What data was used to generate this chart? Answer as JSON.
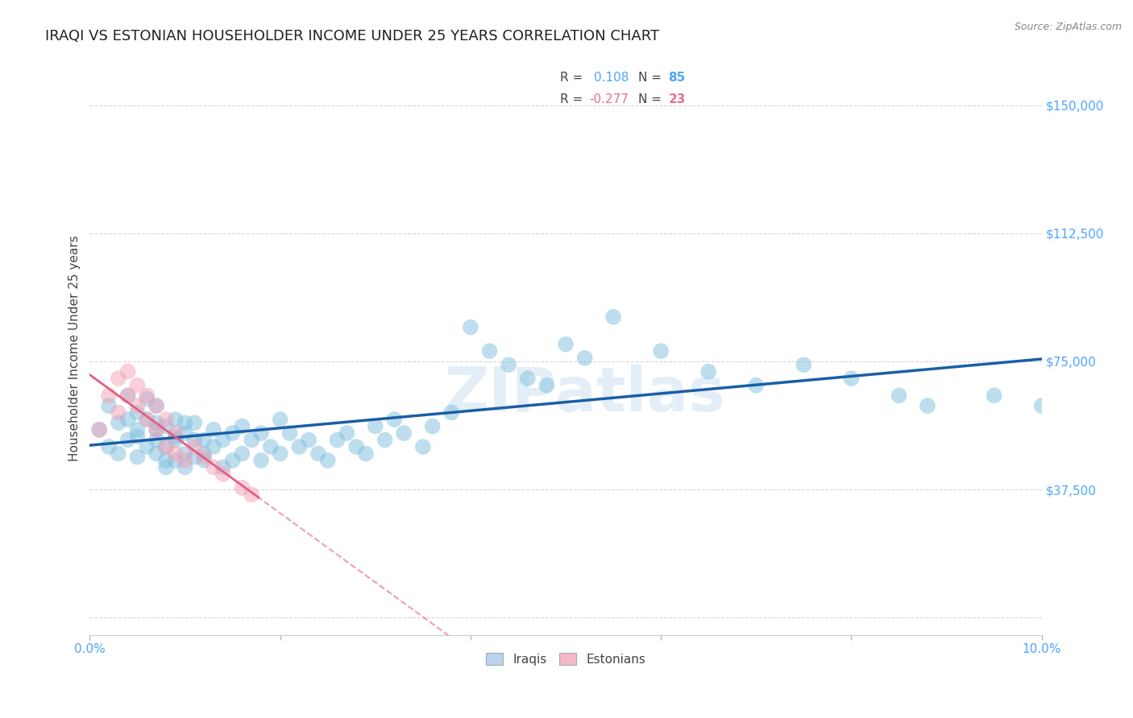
{
  "title": "IRAQI VS ESTONIAN HOUSEHOLDER INCOME UNDER 25 YEARS CORRELATION CHART",
  "source": "Source: ZipAtlas.com",
  "ylabel": "Householder Income Under 25 years",
  "xmin": 0.0,
  "xmax": 0.1,
  "ymin": -5000,
  "ymax": 162500,
  "ytick_vals": [
    0,
    37500,
    75000,
    112500,
    150000
  ],
  "ytick_labels": [
    "",
    "$37,500",
    "$75,000",
    "$112,500",
    "$150,000"
  ],
  "xticks": [
    0.0,
    0.02,
    0.04,
    0.06,
    0.08,
    0.1
  ],
  "xtick_labels": [
    "0.0%",
    "",
    "",
    "",
    "",
    "10.0%"
  ],
  "iraqi_color": "#7fbfdf",
  "estonian_color": "#f4a0b5",
  "iraqi_line_color": "#1a5ea8",
  "estonian_line_color": "#e06080",
  "background_color": "#ffffff",
  "grid_color": "#cccccc",
  "title_fontsize": 13,
  "axis_label_fontsize": 11,
  "tick_fontsize": 11,
  "legend_box_color_iraqi": "#b8d4ee",
  "legend_box_color_estonian": "#f5b8c8",
  "zipatlas_text": "ZIPatlas",
  "iraqi_x": [
    0.001,
    0.002,
    0.002,
    0.003,
    0.003,
    0.004,
    0.004,
    0.004,
    0.005,
    0.005,
    0.005,
    0.005,
    0.006,
    0.006,
    0.006,
    0.007,
    0.007,
    0.007,
    0.007,
    0.007,
    0.008,
    0.008,
    0.008,
    0.008,
    0.009,
    0.009,
    0.009,
    0.009,
    0.01,
    0.01,
    0.01,
    0.01,
    0.011,
    0.011,
    0.011,
    0.012,
    0.012,
    0.012,
    0.013,
    0.013,
    0.014,
    0.014,
    0.015,
    0.015,
    0.016,
    0.016,
    0.017,
    0.018,
    0.018,
    0.019,
    0.02,
    0.02,
    0.021,
    0.022,
    0.023,
    0.024,
    0.025,
    0.026,
    0.027,
    0.028,
    0.029,
    0.03,
    0.031,
    0.032,
    0.033,
    0.035,
    0.036,
    0.038,
    0.04,
    0.042,
    0.044,
    0.046,
    0.048,
    0.05,
    0.052,
    0.055,
    0.06,
    0.065,
    0.07,
    0.075,
    0.08,
    0.085,
    0.088,
    0.095,
    0.1
  ],
  "iraqi_y": [
    55000,
    62000,
    50000,
    57000,
    48000,
    65000,
    58000,
    52000,
    55000,
    60000,
    47000,
    53000,
    58000,
    50000,
    64000,
    52000,
    57000,
    48000,
    55000,
    62000,
    46000,
    50000,
    56000,
    44000,
    52000,
    58000,
    46000,
    53000,
    48000,
    57000,
    44000,
    54000,
    47000,
    52000,
    57000,
    46000,
    52000,
    48000,
    50000,
    55000,
    44000,
    52000,
    46000,
    54000,
    48000,
    56000,
    52000,
    46000,
    54000,
    50000,
    48000,
    58000,
    54000,
    50000,
    52000,
    48000,
    46000,
    52000,
    54000,
    50000,
    48000,
    56000,
    52000,
    58000,
    54000,
    50000,
    56000,
    60000,
    85000,
    78000,
    74000,
    70000,
    68000,
    80000,
    76000,
    88000,
    78000,
    72000,
    68000,
    74000,
    70000,
    65000,
    62000,
    65000,
    62000
  ],
  "estonian_x": [
    0.001,
    0.002,
    0.003,
    0.003,
    0.004,
    0.004,
    0.005,
    0.005,
    0.006,
    0.006,
    0.007,
    0.007,
    0.008,
    0.008,
    0.009,
    0.009,
    0.01,
    0.011,
    0.012,
    0.013,
    0.014,
    0.016,
    0.017
  ],
  "estonian_y": [
    55000,
    65000,
    60000,
    70000,
    65000,
    72000,
    62000,
    68000,
    58000,
    65000,
    55000,
    62000,
    50000,
    58000,
    48000,
    54000,
    46000,
    50000,
    47000,
    44000,
    42000,
    38000,
    36000
  ]
}
